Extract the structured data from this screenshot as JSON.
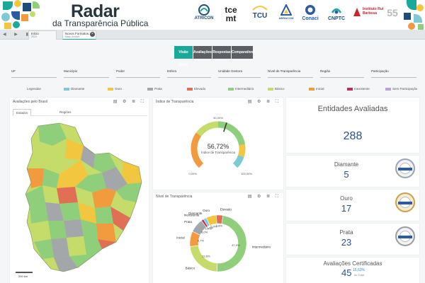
{
  "header": {
    "title": "Radar",
    "subtitle": "da Transparência Pública",
    "logos": [
      {
        "label": "ATRICON",
        "icon": "atricon-logo-icon"
      },
      {
        "label": "tce mt",
        "icon": "tce-mt-logo-icon"
      },
      {
        "label": "TCU",
        "icon": "tcu-logo-icon"
      },
      {
        "label": "ABRACOM",
        "icon": "abracom-logo-icon"
      },
      {
        "label": "Conaci",
        "icon": "conaci-logo-icon"
      },
      {
        "label": "CNPTC",
        "icon": "cnptc-logo-icon"
      },
      {
        "label": "Instituto Rui Barbosa",
        "icon": "irb-logo-icon"
      },
      {
        "label": "55",
        "icon": "anniversary-logo-icon"
      }
    ]
  },
  "tabs": [
    {
      "label": "Início",
      "sub": "2024"
    },
    {
      "label": "Novos Formatos...",
      "sub": "Mato Grosso"
    }
  ],
  "view_tabs": [
    {
      "label": "Visão Geral",
      "active": true
    },
    {
      "label": "Avaliações",
      "active": false
    },
    {
      "label": "Respostas",
      "active": false
    },
    {
      "label": "Comparativos",
      "active": false
    }
  ],
  "filters": [
    "UF",
    "Município",
    "Poder",
    "Esfera",
    "Unidade Gestora",
    "Nível de Transparência",
    "Região",
    "Participação"
  ],
  "legend": {
    "title": "Legendas",
    "items": [
      {
        "label": "Diamante",
        "color": "#7fc8d6"
      },
      {
        "label": "Ouro",
        "color": "#f2c73f"
      },
      {
        "label": "Prata",
        "color": "#a4a7aa"
      },
      {
        "label": "Elevado",
        "color": "#e06f55"
      },
      {
        "label": "Intermediário",
        "color": "#8fcf7b"
      },
      {
        "label": "Básico",
        "color": "#c5dc6a"
      },
      {
        "label": "Inicial",
        "color": "#f19a3e"
      },
      {
        "label": "Inexistente",
        "color": "#b8325f"
      },
      {
        "label": "Sem Participação",
        "color": "#b9a3d4"
      }
    ]
  },
  "map_card": {
    "title": "Avaliações pelo Brasil",
    "tabs": [
      "Estados",
      "Regiões"
    ],
    "scale": "200 km"
  },
  "gauge_card": {
    "title": "Índice de Transparência",
    "value_label": "56,72%",
    "caption": "Índice de Transparência",
    "ticks": [
      "0,00%",
      "50,00%",
      "100,00%"
    ]
  },
  "chart_data": {
    "type": "pie",
    "title": "Nível de Transparência",
    "slices": [
      {
        "label": "Intermediário",
        "value": 47.92,
        "display": "47,9%",
        "color": "#8fcf7b"
      },
      {
        "label": "Básico",
        "value": 22.57,
        "display": "22,6%",
        "color": "#c5dc6a"
      },
      {
        "label": "Inicial",
        "value": 8.68,
        "display": "8,7%",
        "color": "#f19a3e"
      },
      {
        "label": "Prata",
        "value": 7.99,
        "display": "8,0%",
        "color": "#a4a7aa"
      },
      {
        "label": "Inexistente",
        "value": 1.39,
        "display": "1,4%",
        "color": "#b8325f"
      },
      {
        "label": "Diamante",
        "value": 1.74,
        "display": "1,7%",
        "color": "#7fc8d6"
      },
      {
        "label": "Ouro",
        "value": 5.9,
        "display": "5,9%",
        "color": "#f2c73f"
      },
      {
        "label": "Elevado",
        "value": 3.82,
        "display": "3,8%",
        "color": "#e06f55"
      }
    ]
  },
  "entities": {
    "title": "Entidades Avaliadas",
    "total": "288",
    "items": [
      {
        "name": "Diamante",
        "value": "5",
        "seal": "diamond-seal-icon",
        "seal_color": "#9aa6b5"
      },
      {
        "name": "Ouro",
        "value": "17",
        "seal": "gold-seal-icon",
        "seal_color": "#c9a24a"
      },
      {
        "name": "Prata",
        "value": "23",
        "seal": "silver-seal-icon",
        "seal_color": "#9b9fa3"
      }
    ],
    "certified_title": "Avaliações Certificadas",
    "certified_value": "45",
    "certified_pct": "15,63%",
    "certified_sub": "do Total"
  }
}
